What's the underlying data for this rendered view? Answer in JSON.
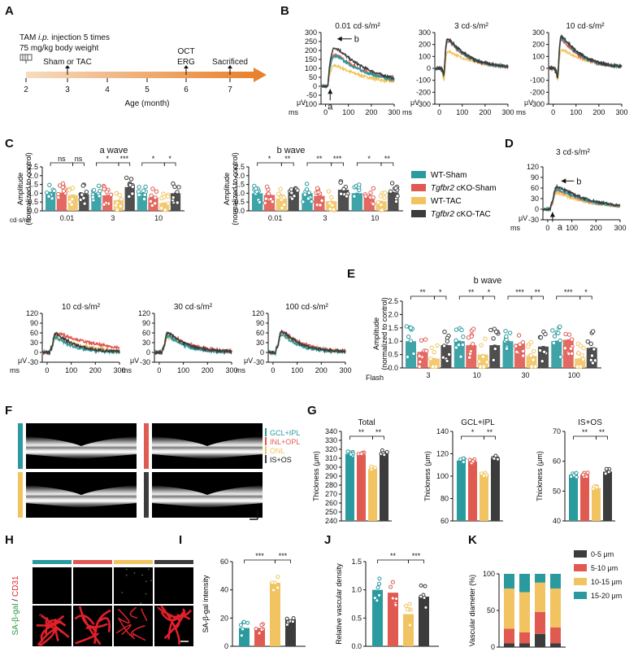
{
  "colors": {
    "wt_sham": "#2a9a9e",
    "cko_sham": "#e05a52",
    "wt_tac": "#f2c461",
    "cko_tac": "#3c3c3c",
    "timeline": "#e8822e"
  },
  "labels": {
    "A": "A",
    "B": "B",
    "C": "C",
    "D": "D",
    "E": "E",
    "F": "F",
    "G": "G",
    "H": "H",
    "I": "I",
    "J": "J",
    "K": "K"
  },
  "panelA": {
    "line1": "TAM i.p. injection 5 times",
    "line1_prefix": "TAM ",
    "line1_italic": "i.p.",
    "line1_suffix": " injection 5 times",
    "line2": "75 mg/kg body weight",
    "sham_tac": "Sham or TAC",
    "oct": "OCT",
    "erg": "ERG",
    "sacrificed": "Sacrificed",
    "ages": [
      "2",
      "3",
      "4",
      "5",
      "6",
      "7"
    ],
    "axis_label": "Age (month)"
  },
  "panelB": {
    "titles": [
      "0.01 cd·s/m²",
      "3 cd·s/m²",
      "10 cd·s/m²"
    ],
    "yticks": [
      "300",
      "250",
      "200",
      "150",
      "100",
      "50",
      "0",
      "-50",
      "-100",
      "-150",
      "-200",
      "-250",
      "-300"
    ],
    "xticks": [
      "0",
      "100",
      "200",
      "300"
    ],
    "ms": "ms",
    "uv": "μV",
    "arrow_a": "a",
    "arrow_b": "b"
  },
  "panelC": {
    "a_title": "a wave",
    "b_title": "b wave",
    "ylabel": "Amplitude (normalized to control)",
    "yticks": [
      "0.0",
      "0.5",
      "1.0",
      "1.5",
      "2.0",
      "2.5"
    ],
    "groups": [
      "0.01",
      "3",
      "10"
    ],
    "unit": "cd·s/m²",
    "a_sig": [
      [
        "ns",
        "ns"
      ],
      [
        "*",
        "***"
      ],
      [
        "*",
        "*"
      ]
    ],
    "b_sig": [
      [
        "*",
        "**"
      ],
      [
        "**",
        "***"
      ],
      [
        "*",
        "**"
      ]
    ],
    "a_means": [
      [
        1.05,
        1.0,
        0.9,
        0.95
      ],
      [
        1.0,
        0.88,
        0.6,
        1.35
      ],
      [
        1.0,
        0.75,
        0.45,
        1.0
      ]
    ],
    "b_means": [
      [
        1.0,
        0.9,
        0.7,
        1.2
      ],
      [
        1.0,
        0.85,
        0.55,
        1.2
      ],
      [
        1.0,
        0.8,
        0.55,
        1.05
      ]
    ]
  },
  "legend": {
    "items": [
      {
        "pre": "",
        "it": "",
        "post": "WT-Sham"
      },
      {
        "pre": "",
        "it": "Tgfbr2",
        "post": " cKO-Sham"
      },
      {
        "pre": "",
        "it": "",
        "post": "WT-TAC"
      },
      {
        "pre": "",
        "it": "Tgfbr2",
        "post": " cKO-TAC"
      }
    ]
  },
  "panelD": {
    "title": "3 cd·s/m²",
    "yticks": [
      "120",
      "90",
      "60",
      "30",
      "0",
      "-30"
    ],
    "xticks": [
      "0",
      "100",
      "200",
      "300"
    ],
    "ms": "ms",
    "uv": "μV",
    "arrow_a": "a",
    "arrow_b": "b"
  },
  "panelLower": {
    "titles": [
      "10 cd·s/m²",
      "30 cd·s/m²",
      "100 cd·s/m²"
    ],
    "yticks": [
      "120",
      "90",
      "60",
      "30",
      "0",
      "-30"
    ],
    "xticks": [
      "0",
      "100",
      "200",
      "300"
    ],
    "ms": "ms",
    "uv": "μV"
  },
  "panelE": {
    "title": "b wave",
    "ylabel": "Amplitude (normalized to control)",
    "yticks": [
      "0.0",
      "0.5",
      "1.0",
      "1.5",
      "2.0",
      "2.5"
    ],
    "flash": "Flash",
    "groups": [
      "3",
      "10",
      "30",
      "100"
    ],
    "sig": [
      [
        "**",
        "*"
      ],
      [
        "**",
        "*"
      ],
      [
        "***",
        "**"
      ],
      [
        "***",
        "*"
      ]
    ],
    "means": [
      [
        1.0,
        0.6,
        0.35,
        0.85
      ],
      [
        1.0,
        0.85,
        0.5,
        0.85
      ],
      [
        1.0,
        0.9,
        0.45,
        0.8
      ],
      [
        1.0,
        1.05,
        0.35,
        0.75
      ]
    ]
  },
  "panelF": {
    "layers": [
      "GCL+IPL",
      "INL+OPL",
      "ONL",
      "IS+OS"
    ]
  },
  "panelG": {
    "charts": [
      {
        "title": "Total",
        "ylabel": "Thickness (μm)",
        "yticks": [
          "240",
          "250",
          "260",
          "270",
          "280",
          "290",
          "300",
          "310",
          "320",
          "330",
          "340"
        ],
        "ymin": 240,
        "ymax": 340,
        "means": [
          315,
          314,
          298,
          316
        ],
        "sig": [
          "**",
          "**"
        ]
      },
      {
        "title": "GCL+IPL",
        "ylabel": "Thickness (μm)",
        "yticks": [
          "60",
          "80",
          "100",
          "120",
          "140"
        ],
        "ymin": 60,
        "ymax": 140,
        "means": [
          114,
          113,
          102,
          116
        ],
        "sig": [
          "*",
          "**"
        ]
      },
      {
        "title": "IS+OS",
        "ylabel": "Thickness (μm)",
        "yticks": [
          "40",
          "50",
          "60",
          "70"
        ],
        "ymin": 40,
        "ymax": 70,
        "means": [
          55.5,
          55.5,
          51,
          56.5
        ],
        "sig": [
          "**",
          "**"
        ]
      }
    ]
  },
  "panelH": {
    "label_green": "SA-β-gal",
    "label_sep": " / ",
    "label_red": "CD31"
  },
  "panelI": {
    "ylabel": "SA-β-gal intensity",
    "yticks": [
      "0",
      "20",
      "40",
      "60"
    ],
    "ymax": 60,
    "means": [
      13,
      13,
      45,
      19
    ],
    "sig": [
      "***",
      "***"
    ]
  },
  "panelJ": {
    "ylabel": "Relative vascular density",
    "yticks": [
      "0.0",
      "0.5",
      "1.0",
      "1.5"
    ],
    "ymax": 1.5,
    "means": [
      1.0,
      0.95,
      0.57,
      0.88
    ],
    "sig": [
      "**",
      "***"
    ]
  },
  "panelK": {
    "ylabel": "Vascular diameter (%)",
    "yticks": [
      "0",
      "50",
      "100"
    ],
    "legend": [
      "0-5 μm",
      "5-10 μm",
      "10-15 μm",
      "15-20 μm"
    ],
    "stacks": [
      [
        5,
        20,
        55,
        20
      ],
      [
        5,
        15,
        55,
        25
      ],
      [
        18,
        30,
        40,
        12
      ],
      [
        5,
        22,
        53,
        20
      ]
    ]
  }
}
